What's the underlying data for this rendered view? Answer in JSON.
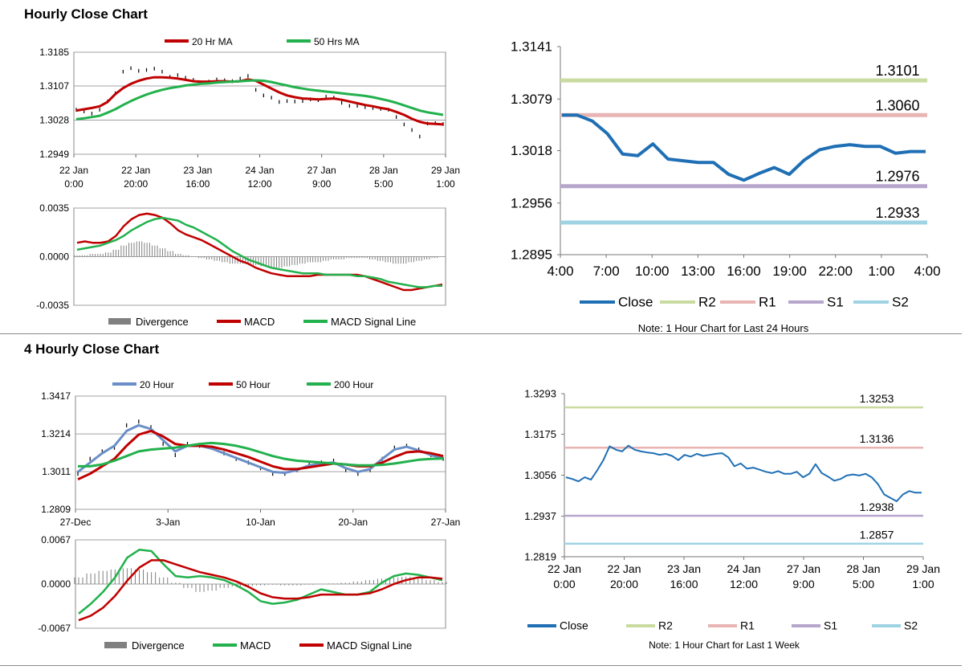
{
  "sections": {
    "hourly_title": "Hourly Close Chart",
    "four_hourly_title": "4 Hourly Close Chart"
  },
  "colors": {
    "ma20_red": "#c00000",
    "ma50_green": "#22b14c",
    "ma20_blue": "#6a8fc8",
    "close_blue": "#1f6fb5",
    "r2": "#c9dba0",
    "r1": "#e8b4b4",
    "s1": "#b7a6cc",
    "s2": "#9fd3e3",
    "divergence": "#808080",
    "grid": "#a0a0a0"
  },
  "chart_data": [
    {
      "id": "hourly_price",
      "type": "line",
      "title": "",
      "y_ticks": [
        "1.3185",
        "1.3107",
        "1.3028",
        "1.2949"
      ],
      "ylim": [
        1.2949,
        1.3185
      ],
      "x_ticks": [
        [
          "22 Jan",
          "0:00"
        ],
        [
          "22 Jan",
          "20:00"
        ],
        [
          "23 Jan",
          "16:00"
        ],
        [
          "24 Jan",
          "12:00"
        ],
        [
          "27 Jan",
          "9:00"
        ],
        [
          "28 Jan",
          "5:00"
        ],
        [
          "29 Jan",
          "1:00"
        ]
      ],
      "legend": [
        "20 Hr MA",
        "50 Hrs MA"
      ],
      "series": [
        {
          "name": "Price",
          "style": "bars",
          "values": [
            1.3052,
            1.3048,
            1.3043,
            1.3052,
            1.3071,
            1.309,
            1.314,
            1.3148,
            1.3142,
            1.3144,
            1.3147,
            1.314,
            1.3128,
            1.3132,
            1.3126,
            1.3121,
            1.3114,
            1.3117,
            1.3122,
            1.312,
            1.3118,
            1.3124,
            1.313,
            1.3098,
            1.3085,
            1.308,
            1.307,
            1.3072,
            1.3071,
            1.3072,
            1.3076,
            1.3074,
            1.3082,
            1.308,
            1.3068,
            1.3061,
            1.3061,
            1.3058,
            1.3056,
            1.3054,
            1.3052,
            1.3035,
            1.3018,
            1.3005,
            1.299,
            1.302,
            1.3021,
            1.3019
          ]
        },
        {
          "name": "20 Hr MA",
          "values": [
            1.305,
            1.3053,
            1.3056,
            1.306,
            1.307,
            1.3088,
            1.3102,
            1.3112,
            1.3119,
            1.3124,
            1.3127,
            1.3127,
            1.3126,
            1.3124,
            1.3121,
            1.3118,
            1.3117,
            1.3117,
            1.3118,
            1.3118,
            1.3117,
            1.3118,
            1.3122,
            1.3119,
            1.311,
            1.3101,
            1.3092,
            1.3085,
            1.3081,
            1.3078,
            1.3077,
            1.3076,
            1.3077,
            1.3078,
            1.3075,
            1.3071,
            1.3067,
            1.3063,
            1.306,
            1.3056,
            1.3053,
            1.3047,
            1.304,
            1.3031,
            1.3024,
            1.302,
            1.3019,
            1.3018
          ]
        },
        {
          "name": "50 Hrs MA",
          "values": [
            1.303,
            1.3032,
            1.3035,
            1.3038,
            1.3045,
            1.3053,
            1.3063,
            1.3072,
            1.308,
            1.3087,
            1.3093,
            1.3098,
            1.3102,
            1.3105,
            1.3108,
            1.311,
            1.3112,
            1.3113,
            1.3115,
            1.3116,
            1.3117,
            1.3118,
            1.3119,
            1.312,
            1.3119,
            1.3116,
            1.3112,
            1.3108,
            1.3104,
            1.3101,
            1.3098,
            1.3096,
            1.3094,
            1.3092,
            1.309,
            1.3088,
            1.3086,
            1.3084,
            1.3081,
            1.3077,
            1.3073,
            1.3068,
            1.3062,
            1.3056,
            1.305,
            1.3046,
            1.3043,
            1.304
          ]
        }
      ]
    },
    {
      "id": "hourly_macd",
      "type": "line",
      "y_ticks": [
        "0.0035",
        "0.0000",
        "-0.0035"
      ],
      "ylim": [
        -0.0035,
        0.0035
      ],
      "legend": [
        "Divergence",
        "MACD",
        "MACD Signal Line"
      ],
      "series": [
        {
          "name": "Divergence",
          "style": "histogram",
          "values": [
            0.0001,
            0.0001,
            0.0002,
            0.0002,
            0.0003,
            0.0005,
            0.0008,
            0.001,
            0.0011,
            0.001,
            0.0008,
            0.0006,
            0.0004,
            0.0002,
            0.0001,
            0.0,
            -0.0001,
            -0.0002,
            -0.0003,
            -0.0004,
            -0.0005,
            -0.0005,
            -0.0005,
            -0.0006,
            -0.0007,
            -0.0008,
            -0.0008,
            -0.0007,
            -0.0006,
            -0.0005,
            -0.0004,
            -0.0004,
            -0.0003,
            -0.0002,
            -0.0002,
            -0.0001,
            -0.0001,
            -0.0001,
            -0.0002,
            -0.0003,
            -0.0004,
            -0.0005,
            -0.0005,
            -0.0004,
            -0.0003,
            -0.0002,
            -0.0001,
            0.0
          ]
        },
        {
          "name": "MACD",
          "values": [
            0.001,
            0.0011,
            0.001,
            0.001,
            0.0011,
            0.0015,
            0.0022,
            0.0027,
            0.003,
            0.0031,
            0.003,
            0.0028,
            0.0024,
            0.0019,
            0.0016,
            0.0014,
            0.0012,
            0.0009,
            0.0006,
            0.0003,
            0.0,
            -0.0003,
            -0.0005,
            -0.0008,
            -0.001,
            -0.0012,
            -0.0013,
            -0.0014,
            -0.0014,
            -0.0014,
            -0.0014,
            -0.0013,
            -0.0013,
            -0.0013,
            -0.0013,
            -0.0013,
            -0.0013,
            -0.0014,
            -0.0016,
            -0.0018,
            -0.002,
            -0.0022,
            -0.0024,
            -0.0024,
            -0.0023,
            -0.0022,
            -0.0021,
            -0.002
          ]
        },
        {
          "name": "MACD Signal Line",
          "values": [
            0.0005,
            0.0006,
            0.0007,
            0.0008,
            0.001,
            0.0012,
            0.0015,
            0.0019,
            0.0022,
            0.0025,
            0.0027,
            0.0028,
            0.0027,
            0.0026,
            0.0023,
            0.0021,
            0.0018,
            0.0015,
            0.0012,
            0.0008,
            0.0004,
            0.0001,
            -0.0002,
            -0.0004,
            -0.0006,
            -0.0008,
            -0.0009,
            -0.001,
            -0.0011,
            -0.0012,
            -0.0012,
            -0.0012,
            -0.0013,
            -0.0013,
            -0.0013,
            -0.0013,
            -0.0014,
            -0.0014,
            -0.0015,
            -0.0016,
            -0.0018,
            -0.0019,
            -0.002,
            -0.0021,
            -0.0022,
            -0.0022,
            -0.0021,
            -0.0021
          ]
        }
      ]
    },
    {
      "id": "hourly_24h_levels",
      "type": "line",
      "y_ticks": [
        "1.3141",
        "1.3079",
        "1.3018",
        "1.2956",
        "1.2895"
      ],
      "ylim": [
        1.2895,
        1.3141
      ],
      "x_ticks": [
        "4:00",
        "7:00",
        "10:00",
        "13:00",
        "16:00",
        "19:00",
        "22:00",
        "1:00",
        "4:00"
      ],
      "levels": [
        {
          "name": "R2",
          "value": 1.3101,
          "label": "1.3101"
        },
        {
          "name": "R1",
          "value": 1.306,
          "label": "1.3060"
        },
        {
          "name": "S1",
          "value": 1.2976,
          "label": "1.2976"
        },
        {
          "name": "S2",
          "value": 1.2933,
          "label": "1.2933"
        }
      ],
      "legend": [
        "Close",
        "R2",
        "R1",
        "S1",
        "S2"
      ],
      "note": "Note: 1 Hour Chart for Last 24 Hours",
      "series": [
        {
          "name": "Close",
          "values": [
            1.306,
            1.306,
            1.3053,
            1.3038,
            1.3014,
            1.3012,
            1.3026,
            1.3008,
            1.3006,
            1.3004,
            1.3004,
            1.299,
            1.2983,
            1.2991,
            1.2998,
            1.299,
            1.3007,
            1.3019,
            1.3023,
            1.3025,
            1.3023,
            1.3023,
            1.3015,
            1.3017,
            1.3017
          ]
        }
      ]
    },
    {
      "id": "four_hourly_price",
      "type": "line",
      "y_ticks": [
        "1.3417",
        "1.3214",
        "1.3011",
        "1.2809"
      ],
      "ylim": [
        1.2809,
        1.3417
      ],
      "x_ticks": [
        "27-Dec",
        "3-Jan",
        "10-Jan",
        "20-Jan",
        "27-Jan"
      ],
      "legend": [
        "20 Hour",
        "50 Hour",
        "200 Hour"
      ],
      "series": [
        {
          "name": "Price",
          "style": "bars",
          "values": [
            1.3,
            1.308,
            1.312,
            1.314,
            1.326,
            1.328,
            1.325,
            1.316,
            1.31,
            1.316,
            1.315,
            1.314,
            1.311,
            1.308,
            1.306,
            1.303,
            1.3,
            1.3,
            1.302,
            1.305,
            1.306,
            1.307,
            1.302,
            1.3,
            1.302,
            1.308,
            1.314,
            1.315,
            1.313,
            1.31,
            1.308
          ]
        },
        {
          "name": "20 Hour",
          "values": [
            1.301,
            1.306,
            1.311,
            1.315,
            1.323,
            1.326,
            1.324,
            1.318,
            1.312,
            1.315,
            1.315,
            1.3135,
            1.311,
            1.3085,
            1.306,
            1.3035,
            1.301,
            1.3005,
            1.302,
            1.3045,
            1.3055,
            1.306,
            1.303,
            1.301,
            1.3025,
            1.308,
            1.313,
            1.3145,
            1.3125,
            1.31,
            1.3085
          ]
        },
        {
          "name": "50 Hour",
          "values": [
            1.297,
            1.3,
            1.304,
            1.308,
            1.315,
            1.321,
            1.323,
            1.32,
            1.316,
            1.315,
            1.315,
            1.3145,
            1.313,
            1.311,
            1.309,
            1.3065,
            1.304,
            1.3025,
            1.3025,
            1.3035,
            1.3045,
            1.3055,
            1.305,
            1.304,
            1.304,
            1.306,
            1.309,
            1.3115,
            1.312,
            1.311,
            1.3095
          ]
        },
        {
          "name": "200 Hour",
          "values": [
            1.304,
            1.304,
            1.305,
            1.307,
            1.3095,
            1.312,
            1.313,
            1.3135,
            1.314,
            1.315,
            1.316,
            1.3165,
            1.316,
            1.315,
            1.3135,
            1.3115,
            1.3095,
            1.308,
            1.307,
            1.3065,
            1.306,
            1.3055,
            1.305,
            1.3045,
            1.3045,
            1.3048,
            1.3055,
            1.3065,
            1.3075,
            1.308,
            1.3082
          ]
        }
      ]
    },
    {
      "id": "four_hourly_macd",
      "type": "line",
      "y_ticks": [
        "0.0067",
        "0.0000",
        "-0.0067"
      ],
      "ylim": [
        -0.0067,
        0.0067
      ],
      "legend": [
        "Divergence",
        "MACD",
        "MACD Signal Line"
      ],
      "series": [
        {
          "name": "Divergence",
          "style": "histogram",
          "values": [
            0.001,
            0.0016,
            0.002,
            0.0022,
            0.0024,
            0.0022,
            0.0018,
            0.001,
            0.0002,
            -0.0006,
            -0.0012,
            -0.001,
            -0.0006,
            -0.0004,
            -0.0003,
            -0.0002,
            -0.0001,
            -0.0002,
            -0.0002,
            -0.0001,
            0.0,
            0.0001,
            0.0002,
            0.0004,
            0.0006,
            0.0008,
            0.001,
            0.0011,
            0.0009,
            0.0006,
            0.0003
          ]
        },
        {
          "name": "MACD",
          "values": [
            -0.0045,
            -0.003,
            -0.0012,
            0.001,
            0.004,
            0.0052,
            0.005,
            0.003,
            0.0012,
            0.001,
            0.0012,
            0.001,
            0.0006,
            -0.0002,
            -0.0012,
            -0.0026,
            -0.003,
            -0.0028,
            -0.0024,
            -0.0016,
            -0.0008,
            -0.0012,
            -0.0016,
            -0.0016,
            -0.0012,
            0.0002,
            0.0012,
            0.0016,
            0.0014,
            0.001,
            0.0006
          ]
        },
        {
          "name": "MACD Signal Line",
          "values": [
            -0.0055,
            -0.0048,
            -0.0036,
            -0.0018,
            0.0005,
            0.0025,
            0.0036,
            0.0036,
            0.003,
            0.0024,
            0.0018,
            0.0014,
            0.001,
            0.0004,
            -0.0004,
            -0.0014,
            -0.002,
            -0.0022,
            -0.0022,
            -0.002,
            -0.0016,
            -0.0016,
            -0.0016,
            -0.0016,
            -0.0014,
            -0.0008,
            0.0,
            0.0006,
            0.001,
            0.001,
            0.0008
          ]
        }
      ]
    },
    {
      "id": "hourly_week_levels",
      "type": "line",
      "y_ticks": [
        "1.3293",
        "1.3175",
        "1.3056",
        "1.2937",
        "1.2819"
      ],
      "ylim": [
        1.2819,
        1.3293
      ],
      "x_ticks": [
        [
          "22 Jan",
          "0:00"
        ],
        [
          "22 Jan",
          "20:00"
        ],
        [
          "23 Jan",
          "16:00"
        ],
        [
          "24 Jan",
          "12:00"
        ],
        [
          "27 Jan",
          "9:00"
        ],
        [
          "28 Jan",
          "5:00"
        ],
        [
          "29 Jan",
          "1:00"
        ]
      ],
      "levels": [
        {
          "name": "R2",
          "value": 1.3253,
          "label": "1.3253"
        },
        {
          "name": "R1",
          "value": 1.3136,
          "label": "1.3136"
        },
        {
          "name": "S1",
          "value": 1.2938,
          "label": "1.2938"
        },
        {
          "name": "S2",
          "value": 1.2857,
          "label": "1.2857"
        }
      ],
      "legend": [
        "Close",
        "R2",
        "R1",
        "S1",
        "S2"
      ],
      "note": "Note: 1 Hour Chart for Last 1 Week",
      "series": [
        {
          "name": "Close",
          "values": [
            1.305,
            1.3045,
            1.3038,
            1.305,
            1.3043,
            1.307,
            1.31,
            1.314,
            1.313,
            1.3125,
            1.3142,
            1.313,
            1.3125,
            1.3122,
            1.312,
            1.3115,
            1.3118,
            1.3112,
            1.31,
            1.3115,
            1.311,
            1.3118,
            1.3112,
            1.3115,
            1.3118,
            1.312,
            1.3108,
            1.3082,
            1.309,
            1.3075,
            1.3078,
            1.3072,
            1.3066,
            1.3062,
            1.3068,
            1.306,
            1.306,
            1.3066,
            1.305,
            1.306,
            1.3088,
            1.3062,
            1.3052,
            1.304,
            1.3045,
            1.3055,
            1.3058,
            1.3055,
            1.306,
            1.305,
            1.303,
            1.3,
            1.299,
            1.298,
            1.3,
            1.301,
            1.3005,
            1.3005
          ]
        }
      ]
    }
  ]
}
